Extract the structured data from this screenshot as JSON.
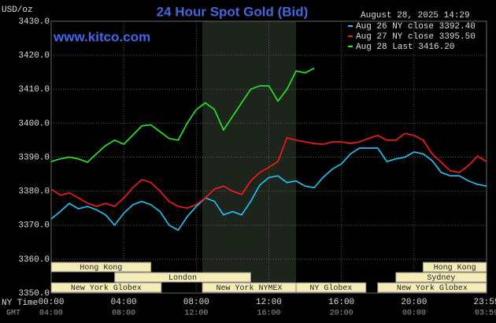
{
  "chart_data": {
    "type": "line",
    "title": "24 Hour Spot Gold (Bid)",
    "watermark": "www.kitco.com",
    "timestamp": "August 28, 2025 14:29",
    "y_unit": "USD/oz",
    "x_label": "NY Time",
    "x2_label": "GMT",
    "x": [
      0,
      0.5,
      1,
      1.5,
      2,
      2.5,
      3,
      3.5,
      4,
      4.5,
      5,
      5.5,
      6,
      6.5,
      7,
      7.5,
      8,
      8.5,
      9,
      9.5,
      10,
      10.5,
      11,
      11.5,
      12,
      12.5,
      13,
      13.5,
      14,
      14.5,
      15,
      15.5,
      16,
      16.5,
      17,
      17.5,
      18,
      18.5,
      19,
      19.5,
      20,
      20.5,
      21,
      21.5,
      22,
      22.5,
      23,
      23.5,
      24
    ],
    "series": [
      {
        "name": "Aug 26 NY close 3392.40",
        "color": "#1ec8ff",
        "values": [
          3371.8,
          3374,
          3376.4,
          3374.8,
          3375.5,
          3374.5,
          3373,
          3370,
          3373.5,
          3376,
          3377,
          3376,
          3374,
          3370,
          3368.5,
          3372.5,
          3375.5,
          3378,
          3377,
          3373,
          3374,
          3373,
          3377,
          3381.8,
          3384,
          3384.5,
          3382.5,
          3383,
          3381.5,
          3381,
          3384.1,
          3386.5,
          3388,
          3391,
          3392.7,
          3392.7,
          3392.7,
          3388.7,
          3389.5,
          3390,
          3391.5,
          3391,
          3389,
          3385.5,
          3384.5,
          3384.5,
          3383,
          3382,
          3381.5
        ]
      },
      {
        "name": "Aug 27 NY close 3395.50",
        "color": "#ff1a1a",
        "values": [
          3380.6,
          3378.8,
          3379.5,
          3378,
          3376.5,
          3375.5,
          3376.4,
          3375.5,
          3378,
          3381,
          3383.4,
          3382.5,
          3380,
          3377,
          3375.5,
          3375,
          3376,
          3378,
          3380.6,
          3381.5,
          3380,
          3379,
          3383,
          3385.5,
          3387,
          3388.7,
          3395.7,
          3395,
          3394.5,
          3394,
          3393.8,
          3394.5,
          3394.5,
          3394,
          3394.5,
          3395.5,
          3396.4,
          3395,
          3395,
          3397,
          3396.4,
          3395,
          3391,
          3388.5,
          3386,
          3385.5,
          3387.5,
          3390.3,
          3388.7
        ]
      },
      {
        "name": "Aug 28 Last 3416.20",
        "color": "#22ee22",
        "values": [
          3388.7,
          3389.5,
          3390,
          3389.5,
          3388.5,
          3391,
          3393.4,
          3395,
          3393.8,
          3396.5,
          3399.2,
          3399.5,
          3397.5,
          3395.5,
          3395,
          3400,
          3404,
          3406,
          3404,
          3398,
          3402,
          3406,
          3410,
          3411,
          3411,
          3406.5,
          3410,
          3415.4,
          3414.8,
          3416.2,
          null,
          null,
          null,
          null,
          null,
          null,
          null,
          null,
          null,
          null,
          null,
          null,
          null,
          null,
          null,
          null,
          null,
          null,
          null
        ]
      }
    ],
    "xlim": [
      0,
      24
    ],
    "ylim": [
      3350,
      3430
    ],
    "yticks": [
      {
        "value": 3350,
        "label": "3350.0"
      },
      {
        "value": 3360,
        "label": "3360.0"
      },
      {
        "value": 3370,
        "label": "3370.0"
      },
      {
        "value": 3380,
        "label": "3380.0"
      },
      {
        "value": 3390,
        "label": "3390.0"
      },
      {
        "value": 3400,
        "label": "3400.0"
      },
      {
        "value": 3410,
        "label": "3410.0"
      },
      {
        "value": 3420,
        "label": "3420.0"
      },
      {
        "value": 3430,
        "label": "3430.0"
      }
    ],
    "xticks": [
      {
        "value": 0,
        "label": "00:00"
      },
      {
        "value": 4,
        "label": "04:00"
      },
      {
        "value": 8,
        "label": "08:00"
      },
      {
        "value": 12,
        "label": "12:00"
      },
      {
        "value": 16,
        "label": "16:00"
      },
      {
        "value": 20,
        "label": "20:00"
      },
      {
        "value": 24,
        "label": "23:59"
      }
    ],
    "x2ticks": [
      {
        "value": 0,
        "label": "04:00"
      },
      {
        "value": 4,
        "label": "08:00"
      },
      {
        "value": 8,
        "label": "12:00"
      },
      {
        "value": 12,
        "label": "16:00"
      },
      {
        "value": 16,
        "label": "20:00"
      },
      {
        "value": 20,
        "label": "00:00"
      },
      {
        "value": 24,
        "label": "03:59"
      }
    ],
    "grid": true,
    "highlight": [
      8.333,
      13.5
    ],
    "sessions": [
      [
        {
          "label": "Hong Kong",
          "start": 0,
          "end": 5.5
        },
        {
          "label": "Hong Kong",
          "start": 20.5,
          "end": 24
        }
      ],
      [
        {
          "label": "London",
          "start": 3.5,
          "end": 11
        },
        {
          "label": "Sydney",
          "start": 19,
          "end": 24
        }
      ],
      [
        {
          "label": "New York Globex",
          "start": 0,
          "end": 6.07
        },
        {
          "label": "New York NYMEX",
          "start": 8.333,
          "end": 13.5
        },
        {
          "label": "NY Globex",
          "start": 13.5,
          "end": 17.35
        },
        {
          "label": "New York Globex",
          "start": 18,
          "end": 24
        }
      ]
    ]
  }
}
